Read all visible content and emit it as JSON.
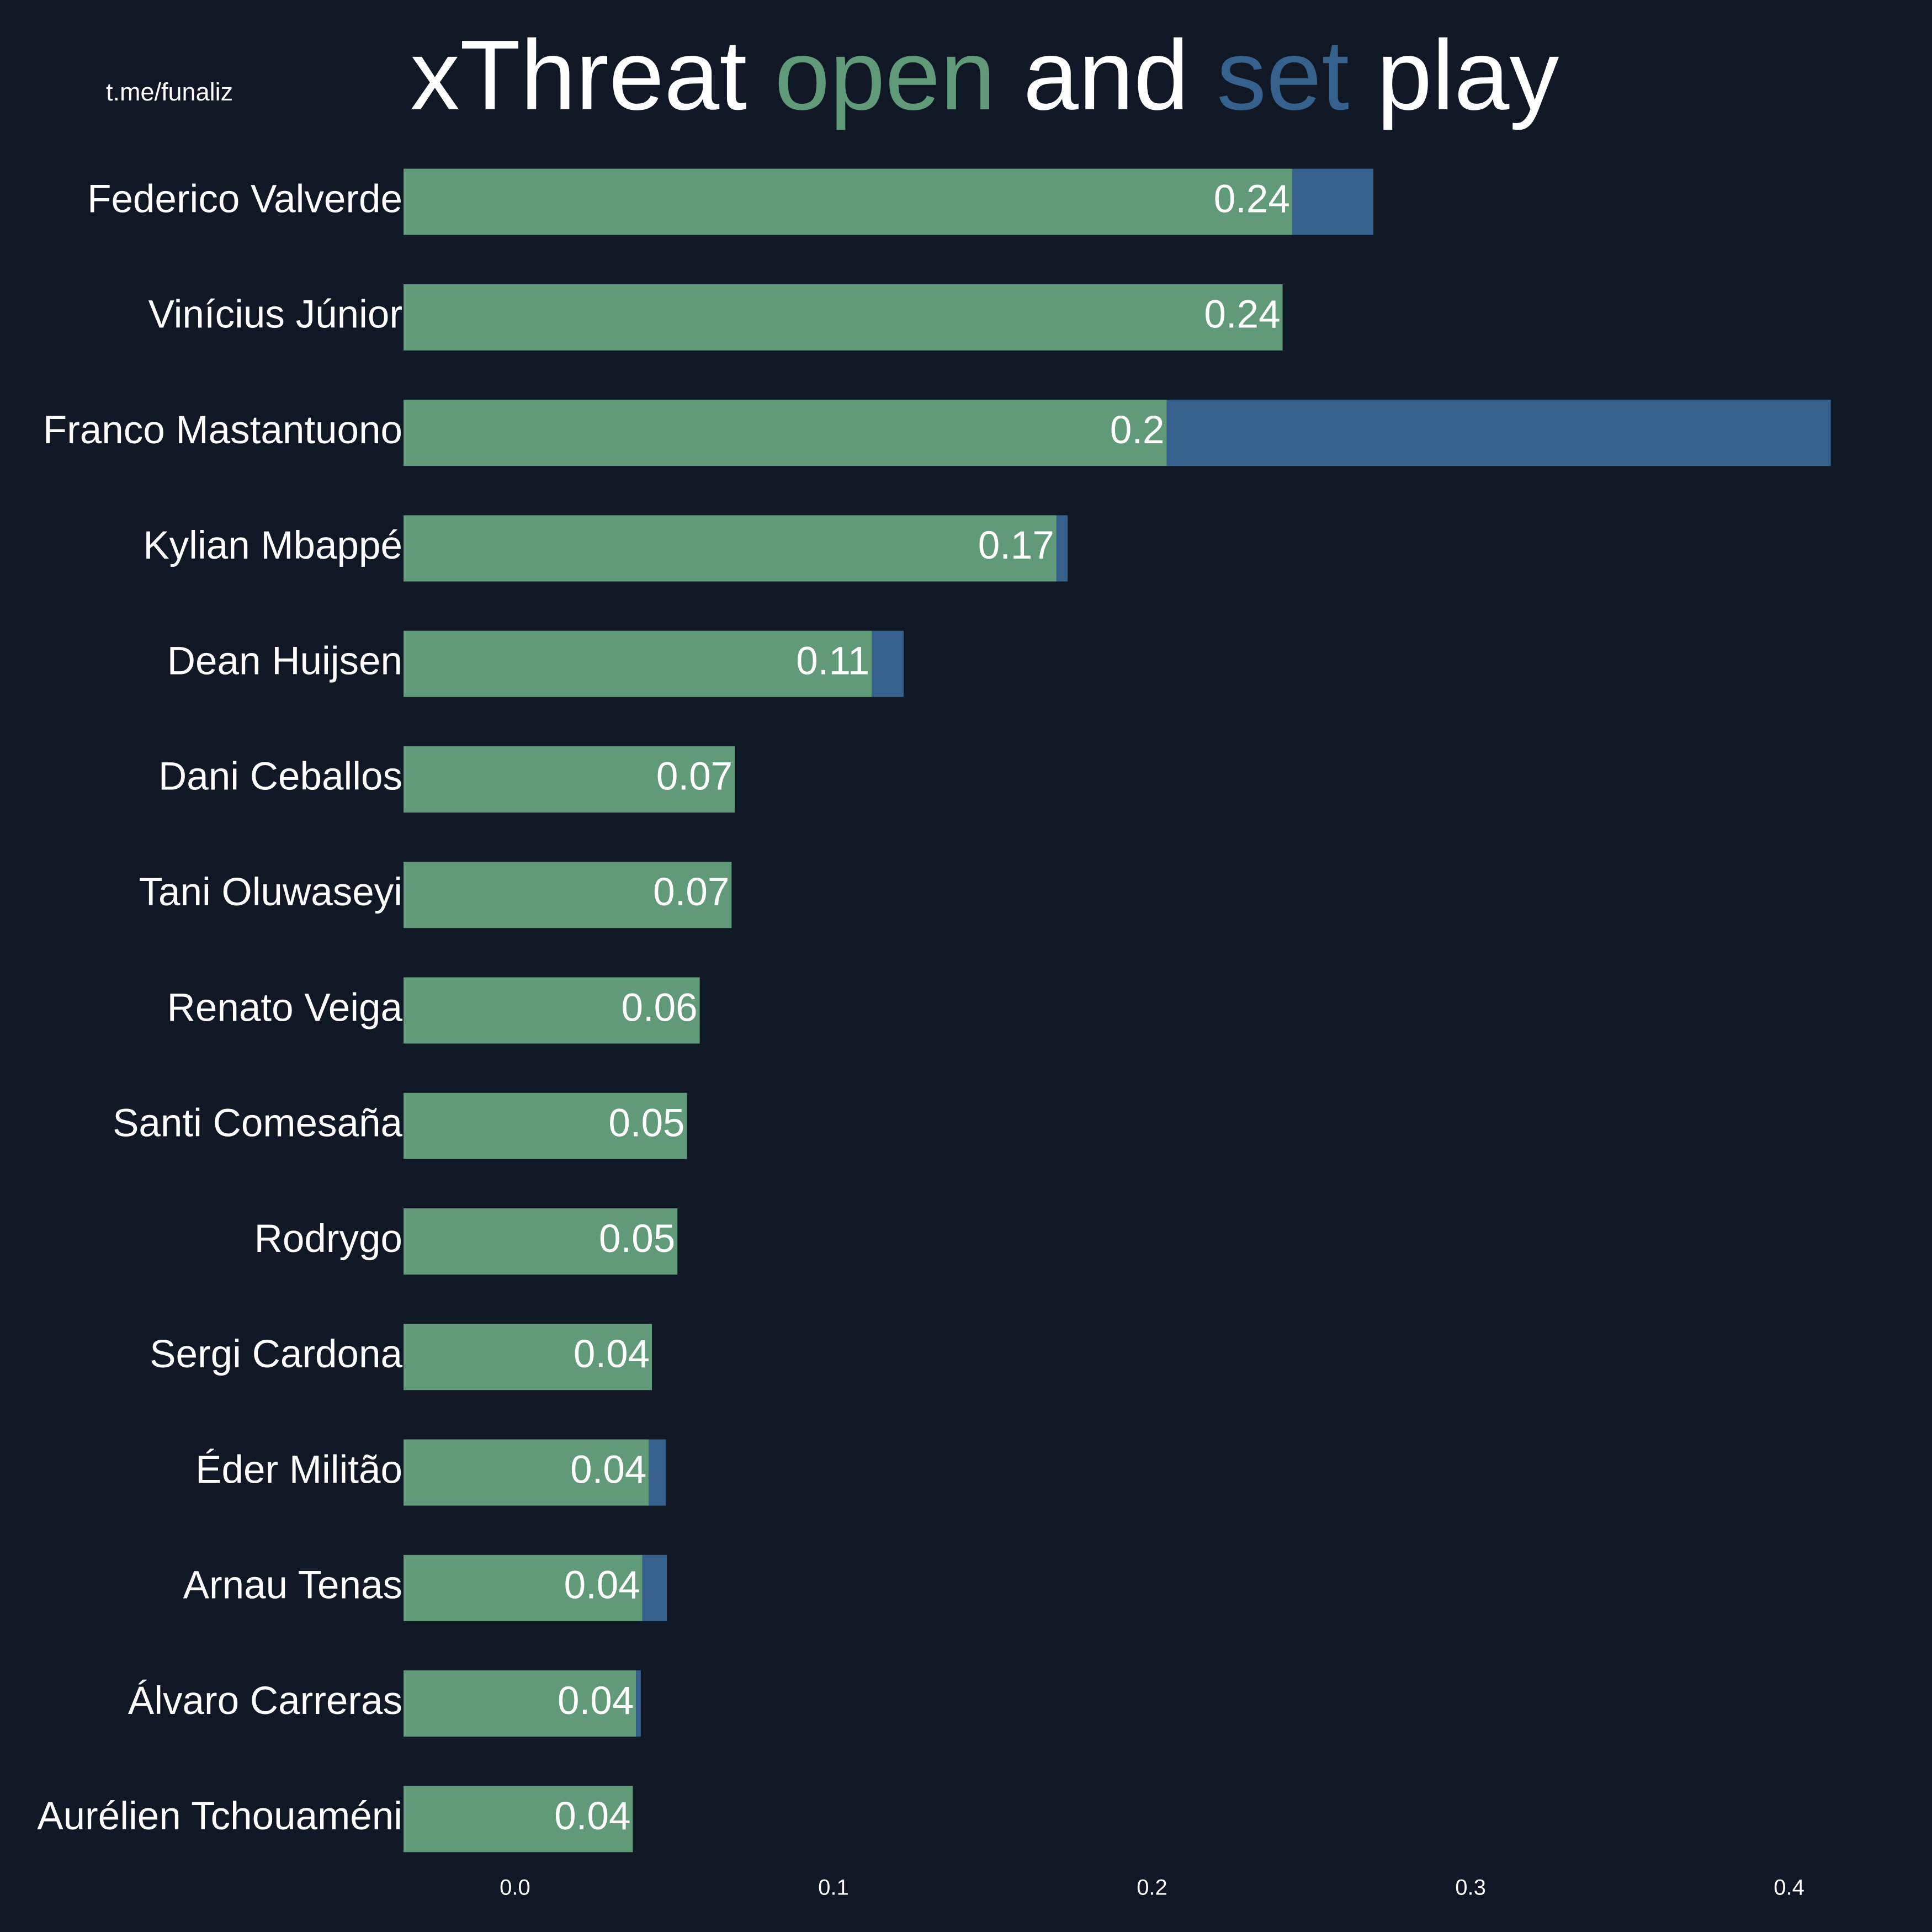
{
  "chart_data": {
    "type": "stacked-barh",
    "title": [
      "xThreat",
      "and",
      "play"
    ],
    "watermark": "t.me/funaliz",
    "categories": [
      "Federico Valverde",
      "Vinícius Júnior",
      "Franco Mastantuono",
      "Kylian Mbappé",
      "Dean Huijsen",
      "Dani Ceballos",
      "Tani Oluwaseyi",
      "Renato Veiga",
      "Santi Comesaña",
      "Rodrygo",
      "Sergi Cardona",
      "Éder Militão",
      "Arnau Tenas",
      "Álvaro Carreras",
      "Aurélien Tchouaméni"
    ],
    "series": [
      {
        "name": "open",
        "color": "#609a78",
        "values": [
          0.244,
          0.241,
          0.2046,
          0.17,
          0.112,
          0.069,
          0.068,
          0.058,
          0.054,
          0.051,
          0.043,
          0.042,
          0.04,
          0.038,
          0.037
        ],
        "value_labels": [
          "0.24",
          "0.24",
          "0.2",
          "0.17",
          "0.11",
          "0.07",
          "0.07",
          "0.06",
          "0.05",
          "0.05",
          "0.04",
          "0.04",
          "0.04",
          "0.04",
          "0.04"
        ]
      },
      {
        "name": "set",
        "color": "#35618c",
        "values": [
          0.0255,
          0,
          0.2085,
          0.0035,
          0.01,
          0,
          0,
          0,
          0,
          0,
          0,
          0.0054,
          0.0077,
          0.0015,
          0
        ]
      }
    ],
    "xlim": [
      -0.035,
      0.435
    ],
    "xticks": [
      {
        "value": 0,
        "label": "0.0"
      },
      0.1,
      0.2,
      0.3,
      0.4
    ],
    "grid": false
  }
}
